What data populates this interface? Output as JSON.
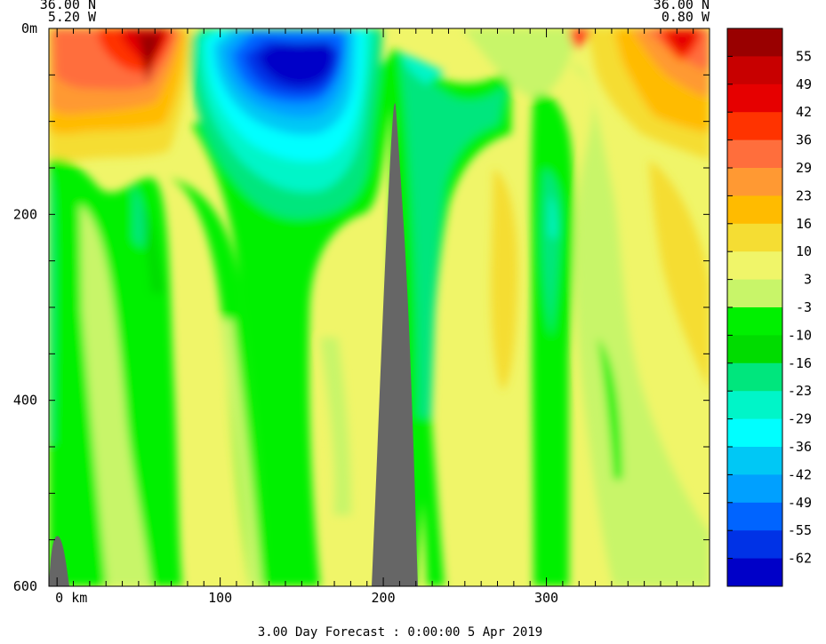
{
  "chart_data": {
    "type": "heatmap",
    "title": "",
    "corner_left": {
      "lat": "36.00 N",
      "lon": "5.20 W"
    },
    "corner_right": {
      "lat": "36.00 N",
      "lon": "0.80 W"
    },
    "xlabel": "",
    "ylabel": "",
    "x_unit_label": "km",
    "xlim": [
      -5,
      400
    ],
    "ylim": [
      600,
      0
    ],
    "x_ticks": [
      0,
      100,
      200,
      300
    ],
    "y_ticks": [
      0,
      200,
      400,
      600
    ],
    "y_top_label": "0m",
    "footer": "3.00 Day Forecast :  0:00:00   5 Apr 2019",
    "colorbar": {
      "labels": [
        "55",
        "49",
        "42",
        "36",
        "29",
        "23",
        "16",
        "10",
        "3",
        "-3",
        "-10",
        "-16",
        "-23",
        "-29",
        "-36",
        "-42",
        "-49",
        "-55",
        "-62"
      ],
      "colors": [
        "#990000",
        "#c80000",
        "#e60000",
        "#ff3300",
        "#ff6e3c",
        "#ff9933",
        "#ffbb00",
        "#f5dd33",
        "#f0f569",
        "#c8f569",
        "#00f000",
        "#00dc00",
        "#00e67d",
        "#00f5c8",
        "#00ffff",
        "#00c8f5",
        "#00a0ff",
        "#0064ff",
        "#0032e6",
        "#0000c8"
      ]
    },
    "land_color": "#666666",
    "approx_fields": [
      {
        "region": "upper-left 0-20 km, 0-120 m",
        "value_range": [
          16,
          55
        ]
      },
      {
        "region": "upper 100-200 km, 20-150 m",
        "value_range": [
          -62,
          -29
        ]
      },
      {
        "region": "upper-right 340-400 km, 0-120 m",
        "value_range": [
          16,
          55
        ]
      },
      {
        "region": "seamount 195-225 km, 80-600 m",
        "value_range": "land"
      },
      {
        "region": "seamount 0-10 km, 545-600 m",
        "value_range": "land"
      },
      {
        "region": "band 60-180 km, 150-600 m",
        "value_range": [
          -16,
          -3
        ]
      },
      {
        "region": "260-290 km, 150-400 m",
        "value_range": [
          10,
          16
        ]
      },
      {
        "region": "305-325 km, 150-350 m",
        "value_range": [
          -29,
          -10
        ]
      }
    ]
  }
}
